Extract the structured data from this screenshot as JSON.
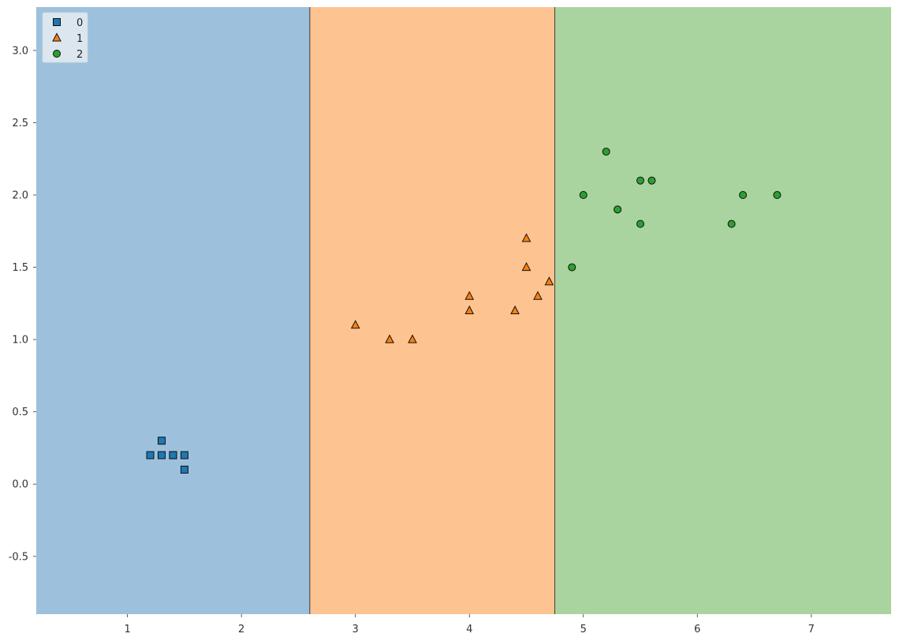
{
  "chart_data": {
    "type": "scatter",
    "title": "",
    "xlabel": "",
    "ylabel": "",
    "xlim": [
      0.2,
      7.7
    ],
    "ylim": [
      -0.9,
      3.3
    ],
    "xticks": [
      1,
      2,
      3,
      4,
      5,
      6,
      7
    ],
    "yticks": [
      -0.5,
      0.0,
      0.5,
      1.0,
      1.5,
      2.0,
      2.5,
      3.0
    ],
    "xtick_labels": [
      "1",
      "2",
      "3",
      "4",
      "5",
      "6",
      "7"
    ],
    "ytick_labels": [
      "-0.5",
      "0.0",
      "0.5",
      "1.0",
      "1.5",
      "2.0",
      "2.5",
      "3.0"
    ],
    "grid": false,
    "legend_position": "top-left",
    "decision_regions": [
      {
        "class": "0",
        "x_from": 0.2,
        "x_to": 2.6,
        "color": "#9dc1dd"
      },
      {
        "class": "1",
        "x_from": 2.6,
        "x_to": 4.75,
        "color": "#fdc391"
      },
      {
        "class": "2",
        "x_from": 4.75,
        "x_to": 7.7,
        "color": "#a9d4a0"
      }
    ],
    "series": [
      {
        "name": "0",
        "marker": "square",
        "color": "#1f77b4",
        "points": [
          [
            1.2,
            0.2
          ],
          [
            1.3,
            0.3
          ],
          [
            1.3,
            0.2
          ],
          [
            1.4,
            0.2
          ],
          [
            1.4,
            0.2
          ],
          [
            1.5,
            0.2
          ],
          [
            1.5,
            0.1
          ]
        ]
      },
      {
        "name": "1",
        "marker": "triangle",
        "color": "#ff7f0e",
        "points": [
          [
            3.0,
            1.1
          ],
          [
            3.3,
            1.0
          ],
          [
            3.5,
            1.0
          ],
          [
            4.0,
            1.3
          ],
          [
            4.0,
            1.2
          ],
          [
            4.4,
            1.2
          ],
          [
            4.5,
            1.7
          ],
          [
            4.5,
            1.5
          ],
          [
            4.6,
            1.3
          ],
          [
            4.7,
            1.4
          ]
        ]
      },
      {
        "name": "2",
        "marker": "circle",
        "color": "#2ca02c",
        "points": [
          [
            4.9,
            1.5
          ],
          [
            5.0,
            2.0
          ],
          [
            5.2,
            2.3
          ],
          [
            5.3,
            1.9
          ],
          [
            5.5,
            2.1
          ],
          [
            5.5,
            1.8
          ],
          [
            5.6,
            2.1
          ],
          [
            6.3,
            1.8
          ],
          [
            6.4,
            2.0
          ],
          [
            6.7,
            2.0
          ]
        ]
      }
    ]
  }
}
